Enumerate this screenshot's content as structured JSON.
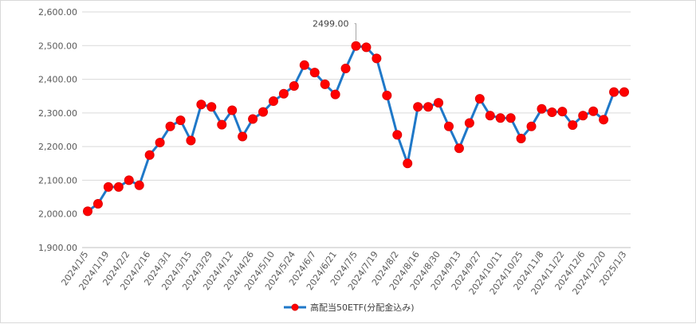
{
  "chart_data": {
    "type": "line",
    "title": "",
    "xlabel": "",
    "ylabel": "",
    "ylim": [
      1900,
      2600
    ],
    "y_ticks": [
      "1,900.00",
      "2,000.00",
      "2,100.00",
      "2,200.00",
      "2,300.00",
      "2,400.00",
      "2,500.00",
      "2,600.00"
    ],
    "x_tick_labels": [
      "2024/1/5",
      "2024/1/19",
      "2024/2/2",
      "2024/2/16",
      "2024/3/1",
      "2024/3/15",
      "2024/3/29",
      "2024/4/12",
      "2024/4/26",
      "2024/5/10",
      "2024/5/24",
      "2024/6/7",
      "2024/6/21",
      "2024/7/5",
      "2024/7/19",
      "2024/8/2",
      "2024/8/16",
      "2024/8/30",
      "2024/9/13",
      "2024/9/27",
      "2024/10/11",
      "2024/10/25",
      "2024/11/8",
      "2024/11/22",
      "2024/12/6",
      "2024/12/20",
      "2025/1/3"
    ],
    "grid": true,
    "legend_position": "bottom",
    "series": [
      {
        "name": "高配当50ETF(分配金込み)",
        "color": "#1f78c8",
        "marker_color": "#ff0000",
        "values": [
          2008,
          2030,
          2080,
          2080,
          2100,
          2085,
          2175,
          2212,
          2260,
          2278,
          2218,
          2325,
          2318,
          2265,
          2308,
          2230,
          2282,
          2303,
          2335,
          2357,
          2380,
          2442,
          2420,
          2385,
          2355,
          2432,
          2499,
          2495,
          2462,
          2352,
          2235,
          2150,
          2318,
          2318,
          2330,
          2260,
          2195,
          2270,
          2342,
          2292,
          2285,
          2285,
          2224,
          2260,
          2312,
          2302,
          2304,
          2264,
          2292,
          2305,
          2280,
          2362,
          2362
        ]
      }
    ],
    "annotations": [
      {
        "text": "2499.00",
        "point_index": 26
      }
    ]
  }
}
